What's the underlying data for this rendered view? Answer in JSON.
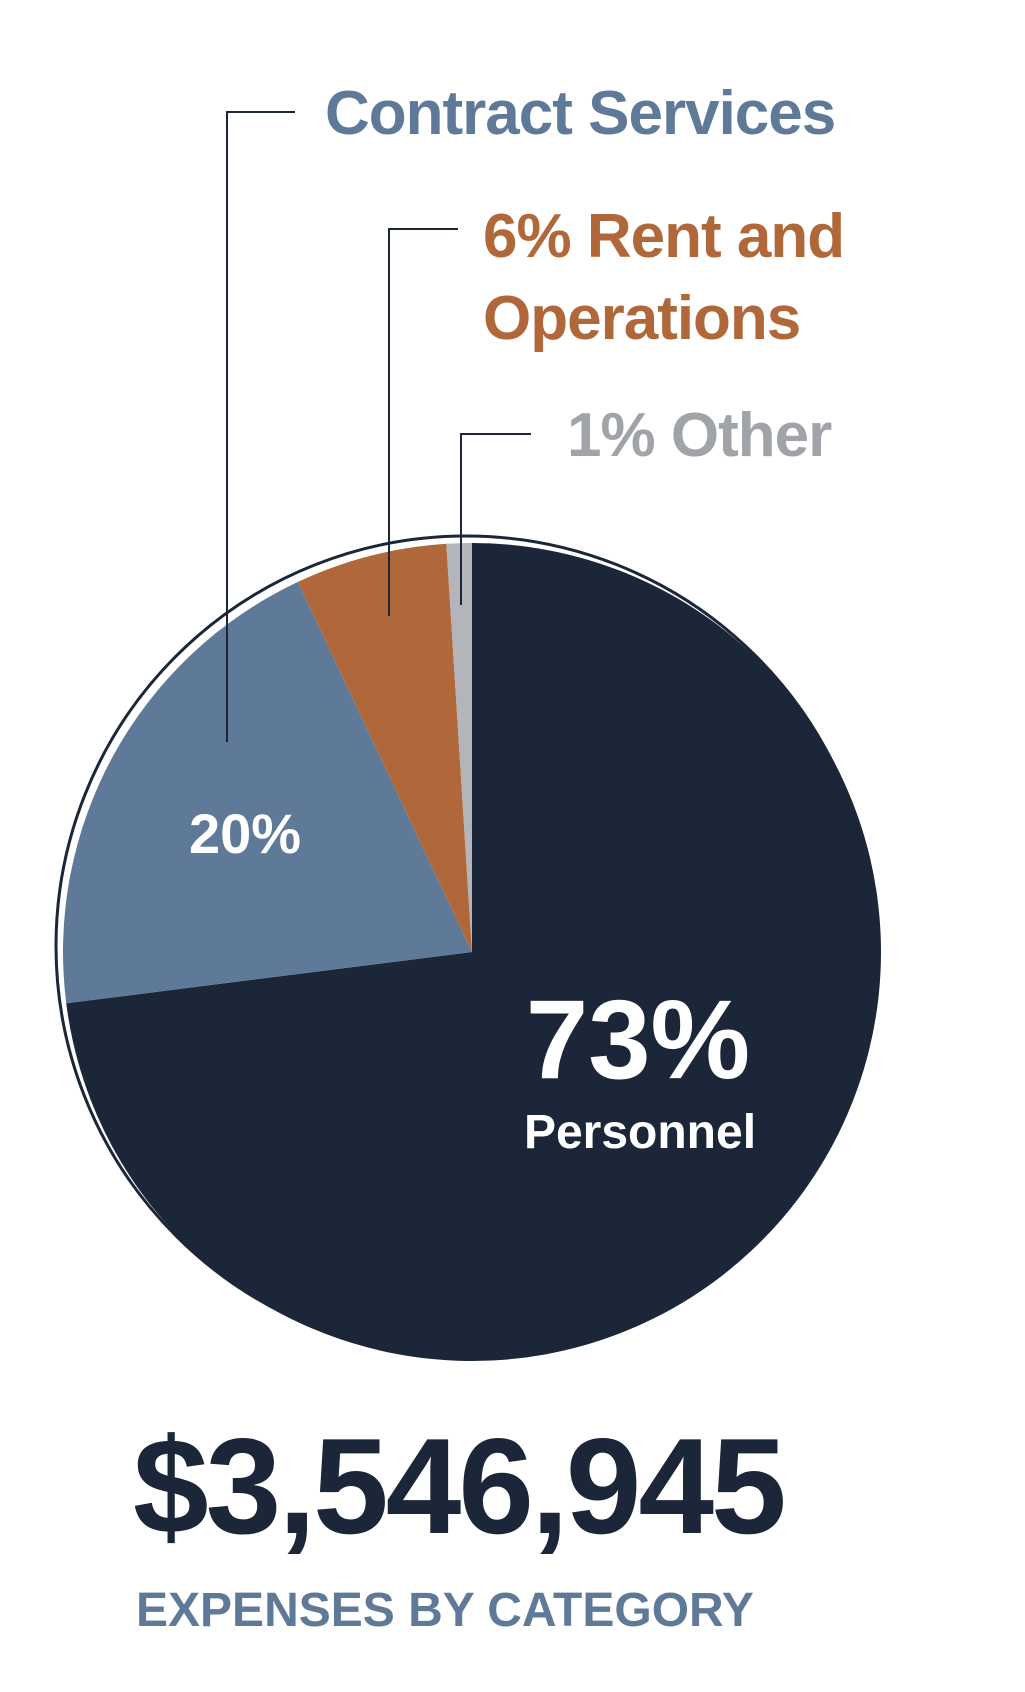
{
  "chart_data": {
    "type": "pie",
    "categories": [
      "Personnel",
      "Contract Services",
      "Rent and Operations",
      "Other"
    ],
    "values": [
      73,
      20,
      6,
      1
    ],
    "value_labels": [
      "73%",
      "20%",
      "6%",
      "1%"
    ],
    "colors": [
      "#1b2638",
      "#5f7a98",
      "#b0683a",
      "#b3b5ba"
    ],
    "label_colors": [
      "#ffffff",
      "#5f7a98",
      "#b0683a",
      "#a0a3a8"
    ],
    "total": "$3,546,945",
    "subtitle": "EXPENSES BY CATEGORY"
  }
}
